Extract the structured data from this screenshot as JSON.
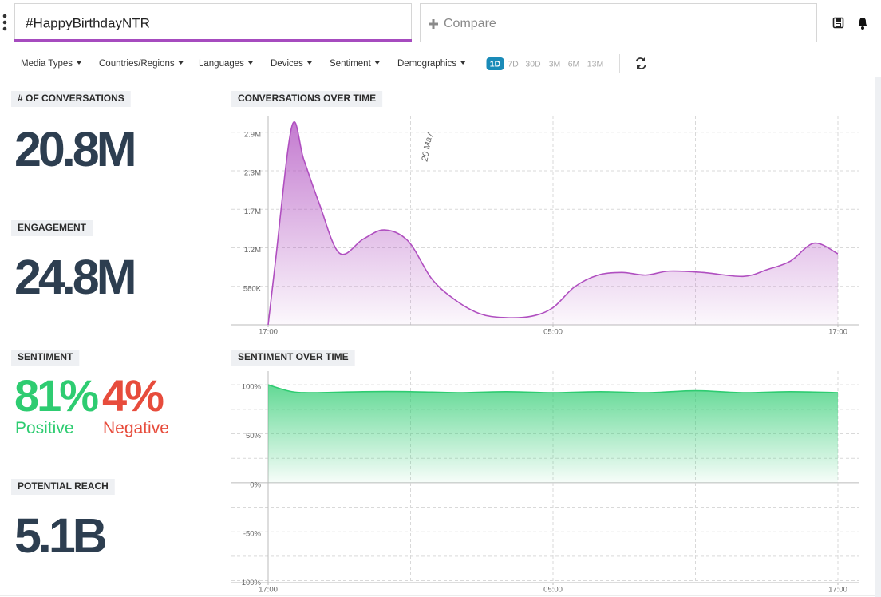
{
  "search": {
    "query": "#HappyBirthdayNTR",
    "compare": "Compare"
  },
  "filters": [
    "Media Types",
    "Countries/Regions",
    "Languages",
    "Devices",
    "Sentiment",
    "Demographics"
  ],
  "ranges": [
    "1D",
    "7D",
    "30D",
    "3M",
    "6M",
    "13M"
  ],
  "selected_range_index": 0,
  "metrics": {
    "conversations": {
      "label": "# OF CONVERSATIONS",
      "value": "20.8M"
    },
    "engagement": {
      "label": "ENGAGEMENT",
      "value": "24.8M"
    },
    "sentiment": {
      "label": "SENTIMENT",
      "positive": {
        "value": "81%",
        "label": "Positive",
        "color": "#2ecc71"
      },
      "negative": {
        "value": "4%",
        "label": "Negative",
        "color": "#e74c3c"
      }
    },
    "reach": {
      "label": "POTENTIAL REACH",
      "value": "5.1B"
    }
  },
  "chart_data": [
    {
      "type": "area",
      "title": "CONVERSATIONS OVER TIME",
      "color": "#b04fc0",
      "x": [
        0,
        0.3,
        1,
        1.5,
        2.15,
        3,
        4,
        4.9,
        5.9,
        6.9,
        7.9,
        8.9,
        9.9,
        11.1,
        12,
        12.9,
        13.9,
        14.9,
        15.9,
        16.9,
        18.3,
        20,
        21,
        22,
        23,
        24
      ],
      "values": [
        0,
        930000,
        2990000,
        2490000,
        1830000,
        1080000,
        1290000,
        1430000,
        1260000,
        690000,
        370000,
        170000,
        110000,
        130000,
        260000,
        570000,
        750000,
        790000,
        750000,
        810000,
        790000,
        730000,
        830000,
        960000,
        1230000,
        1070000
      ],
      "xlim": [
        0,
        24
      ],
      "xticks": [
        {
          "value": 0,
          "label": "17:00"
        },
        {
          "value": 12,
          "label": "05:00"
        },
        {
          "value": 24,
          "label": "17:00"
        }
      ],
      "xgrid": [
        6,
        12,
        18,
        24
      ],
      "ylim": [
        0,
        3150000
      ],
      "yticks": [
        {
          "value": 580000,
          "label": "580K"
        },
        {
          "value": 1160000,
          "label": "1.2M"
        },
        {
          "value": 1740000,
          "label": "1.7M"
        },
        {
          "value": 2320000,
          "label": "2.3M"
        },
        {
          "value": 2900000,
          "label": "2.9M"
        }
      ],
      "grid": true,
      "annotations": [
        {
          "x": 6,
          "text": "20 May"
        }
      ]
    },
    {
      "type": "area",
      "title": "SENTIMENT OVER TIME",
      "color": "#2ecc71",
      "x": [
        0,
        1,
        2,
        4,
        6,
        8,
        10,
        12,
        14,
        16,
        18,
        20,
        22,
        24
      ],
      "values": [
        100,
        93,
        92,
        93,
        93,
        92,
        93,
        92,
        93,
        92,
        94,
        92,
        93,
        92
      ],
      "xlim": [
        0,
        24
      ],
      "xticks": [
        {
          "value": 0,
          "label": "17:00"
        },
        {
          "value": 12,
          "label": "05:00"
        },
        {
          "value": 24,
          "label": "17:00"
        }
      ],
      "xgrid": [
        6,
        12,
        18,
        24
      ],
      "ylim": [
        -102,
        114
      ],
      "yticks": [
        {
          "value": 100,
          "label": "100%"
        },
        {
          "value": 50,
          "label": "50%"
        },
        {
          "value": 0,
          "label": "0%"
        },
        {
          "value": -50,
          "label": "-50%"
        },
        {
          "value": -100,
          "label": "-100%"
        }
      ],
      "yminor": [
        75,
        25,
        -25,
        -75
      ],
      "grid": true
    }
  ]
}
